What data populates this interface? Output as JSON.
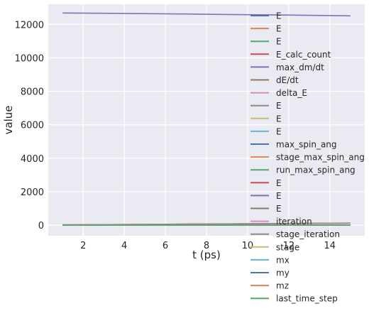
{
  "chart_data": {
    "type": "line",
    "xlabel": "t (ps)",
    "ylabel": "value",
    "xlim": [
      0.3,
      15.7
    ],
    "ylim": [
      -630,
      13200
    ],
    "xticks": [
      2,
      4,
      6,
      8,
      10,
      12,
      14
    ],
    "yticks": [
      0,
      2000,
      4000,
      6000,
      8000,
      10000,
      12000
    ],
    "x": [
      1,
      3,
      5,
      7,
      9,
      11,
      13,
      15
    ],
    "grid": true,
    "legend_position": "right",
    "series": [
      {
        "name": "E",
        "color": "#4C72B0",
        "values": [
          0,
          0,
          0,
          0,
          0,
          0,
          0,
          0
        ]
      },
      {
        "name": "E",
        "color": "#DD8452",
        "values": [
          0,
          0,
          0,
          0,
          0,
          0,
          0,
          0
        ]
      },
      {
        "name": "E",
        "color": "#55A868",
        "values": [
          0,
          0,
          0,
          0,
          0,
          0,
          0,
          0
        ]
      },
      {
        "name": "E_calc_count",
        "color": "#C44E52",
        "values": [
          20,
          35,
          50,
          65,
          80,
          95,
          110,
          125
        ]
      },
      {
        "name": "max_dm/dt",
        "color": "#8172B3",
        "values": [
          12680,
          12660,
          12640,
          12620,
          12590,
          12570,
          12540,
          12510
        ]
      },
      {
        "name": "dE/dt",
        "color": "#937860",
        "values": [
          0,
          0,
          0,
          0,
          0,
          0,
          0,
          0
        ]
      },
      {
        "name": "delta_E",
        "color": "#DA8BC3",
        "values": [
          0,
          0,
          0,
          0,
          0,
          0,
          0,
          0
        ]
      },
      {
        "name": "E",
        "color": "#8C8C8C",
        "values": [
          0,
          0,
          0,
          0,
          0,
          0,
          0,
          0
        ]
      },
      {
        "name": "E",
        "color": "#CCB974",
        "values": [
          0,
          0,
          0,
          0,
          0,
          0,
          0,
          0
        ]
      },
      {
        "name": "E",
        "color": "#64B5CD",
        "values": [
          0,
          0,
          0,
          0,
          0,
          0,
          0,
          0
        ]
      },
      {
        "name": "max_spin_ang",
        "color": "#4C72B0",
        "values": [
          5,
          5,
          5,
          5,
          5,
          5,
          5,
          5
        ]
      },
      {
        "name": "stage_max_spin_ang",
        "color": "#DD8452",
        "values": [
          5,
          5,
          5,
          5,
          5,
          5,
          5,
          5
        ]
      },
      {
        "name": "run_max_spin_ang",
        "color": "#55A868",
        "values": [
          5,
          5,
          5,
          5,
          5,
          5,
          5,
          5
        ]
      },
      {
        "name": "E",
        "color": "#C44E52",
        "values": [
          0,
          0,
          0,
          0,
          0,
          0,
          0,
          0
        ]
      },
      {
        "name": "E",
        "color": "#8172B3",
        "values": [
          0,
          0,
          0,
          0,
          0,
          0,
          0,
          0
        ]
      },
      {
        "name": "E",
        "color": "#937860",
        "values": [
          0,
          0,
          0,
          0,
          0,
          0,
          0,
          0
        ]
      },
      {
        "name": "iteration",
        "color": "#DA8BC3",
        "values": [
          18,
          33,
          48,
          63,
          78,
          93,
          108,
          123
        ]
      },
      {
        "name": "stage_iteration",
        "color": "#8C8C8C",
        "values": [
          18,
          33,
          48,
          63,
          78,
          93,
          108,
          123
        ]
      },
      {
        "name": "stage",
        "color": "#CCB974",
        "values": [
          0,
          0,
          0,
          0,
          0,
          0,
          0,
          0
        ]
      },
      {
        "name": "mx",
        "color": "#64B5CD",
        "values": [
          0,
          0,
          0,
          0,
          0,
          0,
          0,
          0
        ]
      },
      {
        "name": "my",
        "color": "#4C72B0",
        "values": [
          0,
          0,
          0,
          0,
          0,
          0,
          0,
          0
        ]
      },
      {
        "name": "mz",
        "color": "#DD8452",
        "values": [
          1,
          1,
          1,
          1,
          1,
          1,
          1,
          1
        ]
      },
      {
        "name": "last_time_step",
        "color": "#55A868",
        "values": [
          0,
          0,
          0,
          0,
          0,
          0,
          0,
          0
        ]
      }
    ]
  }
}
